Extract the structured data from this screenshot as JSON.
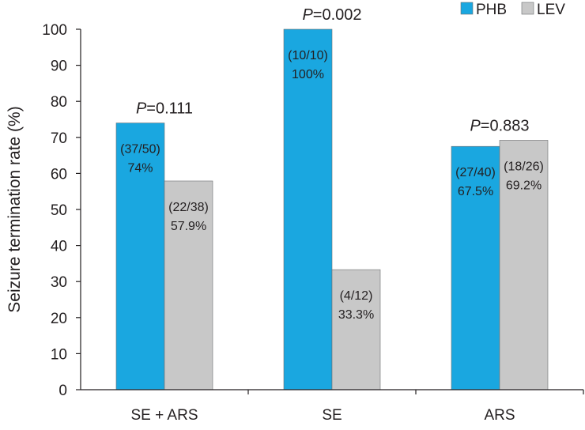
{
  "chart_data": {
    "type": "bar",
    "categories": [
      "SE + ARS",
      "SE",
      "ARS"
    ],
    "series": [
      {
        "name": "PHB",
        "color": "#1aa7e0",
        "values": [
          74,
          100,
          67.5
        ],
        "labels": [
          [
            "(37/50)",
            "74%"
          ],
          [
            "(10/10)",
            "100%"
          ],
          [
            "(27/40)",
            "67.5%"
          ]
        ]
      },
      {
        "name": "LEV",
        "color": "#c8c8c8",
        "values": [
          57.9,
          33.3,
          69.2
        ],
        "labels": [
          [
            "(22/38)",
            "57.9%"
          ],
          [
            "(4/12)",
            "33.3%"
          ],
          [
            "(18/26)",
            "69.2%"
          ]
        ]
      }
    ],
    "p_values": [
      {
        "p": "P",
        "value": "=0.111"
      },
      {
        "p": "P",
        "value": "=0.002"
      },
      {
        "p": "P",
        "value": "=0.883"
      }
    ],
    "ylabel": "Seizure termination rate (%)",
    "ylim": [
      0,
      100
    ],
    "yticks": [
      0,
      10,
      20,
      30,
      40,
      50,
      60,
      70,
      80,
      90,
      100
    ],
    "legend": "top-right",
    "grid": false
  }
}
